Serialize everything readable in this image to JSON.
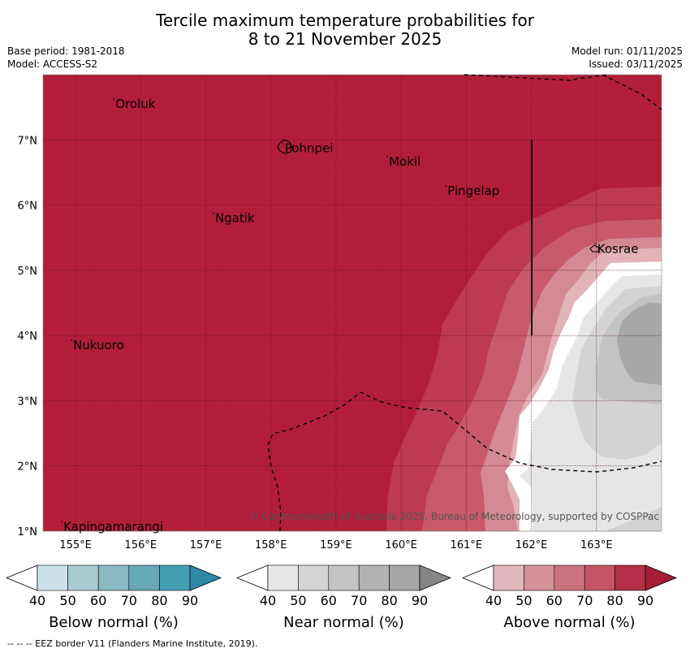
{
  "title": {
    "line1": "Tercile maximum temperature probabilities for",
    "line2": "8 to 21 November 2025"
  },
  "meta": {
    "base_period": "Base period: 1981-2018",
    "model": "Model: ACCESS-S2",
    "model_run": "Model run: 01/11/2025",
    "issued": "Issued: 03/11/2025"
  },
  "map": {
    "lon_range": [
      154.5,
      164.0
    ],
    "lat_range": [
      1.0,
      8.0
    ],
    "x_ticks": [
      {
        "lon": 155,
        "label": "155°E"
      },
      {
        "lon": 156,
        "label": "156°E"
      },
      {
        "lon": 157,
        "label": "157°E"
      },
      {
        "lon": 158,
        "label": "158°E"
      },
      {
        "lon": 159,
        "label": "159°E"
      },
      {
        "lon": 160,
        "label": "160°E"
      },
      {
        "lon": 161,
        "label": "161°E"
      },
      {
        "lon": 162,
        "label": "162°E"
      },
      {
        "lon": 163,
        "label": "163°E"
      }
    ],
    "y_ticks": [
      {
        "lat": 1,
        "label": "1°N"
      },
      {
        "lat": 2,
        "label": "2°N"
      },
      {
        "lat": 3,
        "label": "3°N"
      },
      {
        "lat": 4,
        "label": "4°N"
      },
      {
        "lat": 5,
        "label": "5°N"
      },
      {
        "lat": 6,
        "label": "6°N"
      },
      {
        "lat": 7,
        "label": "7°N"
      }
    ],
    "places": [
      {
        "name": "Oroluk",
        "lon": 155.6,
        "lat": 7.55
      },
      {
        "name": "Pohnpei",
        "lon": 158.2,
        "lat": 6.87
      },
      {
        "name": "Mokil",
        "lon": 159.8,
        "lat": 6.67
      },
      {
        "name": "Pingelap",
        "lon": 160.7,
        "lat": 6.22
      },
      {
        "name": "Ngatik",
        "lon": 157.13,
        "lat": 5.8
      },
      {
        "name": "Kosrae",
        "lon": 163.0,
        "lat": 5.33
      },
      {
        "name": "Nukuoro",
        "lon": 154.95,
        "lat": 3.85
      },
      {
        "name": "Kapingamarangi",
        "lon": 154.8,
        "lat": 1.07
      }
    ],
    "copyright": "© Commonwealth of Australia 2025, Bureau of Meteorology, supported by COSPPac",
    "colors": {
      "above_90": "#b21e3a",
      "above_80": "#bd3a50",
      "above_70": "#c85a6a",
      "above_60": "#d48a94",
      "above_50": "#e2b4ba",
      "near_50": "#e6e6e6",
      "near_60": "#d3d3d3",
      "near_70": "#c3c3c3",
      "near_80": "#a7a7a7"
    }
  },
  "legends": [
    {
      "caption": "Below normal (%)",
      "ticks": [
        "40",
        "50",
        "60",
        "70",
        "80",
        "90"
      ],
      "colors": [
        "#cde2e8",
        "#a8cbd1",
        "#8ab8c3",
        "#67a9b9",
        "#449fb3",
        "#2e8aa6"
      ]
    },
    {
      "caption": "Near normal (%)",
      "ticks": [
        "40",
        "50",
        "60",
        "70",
        "80",
        "90"
      ],
      "colors": [
        "#e6e6e6",
        "#d4d4d4",
        "#c4c4c4",
        "#b3b3b3",
        "#a6a6a6",
        "#868686"
      ]
    },
    {
      "caption": "Above normal (%)",
      "ticks": [
        "40",
        "50",
        "60",
        "70",
        "80",
        "90"
      ],
      "colors": [
        "#e1b7be",
        "#d6919b",
        "#cb7480",
        "#c35564",
        "#b52f48",
        "#a61c35"
      ]
    }
  ],
  "footer": "--  --  -- EEZ border V11 (Flanders Marine Institute, 2019)."
}
